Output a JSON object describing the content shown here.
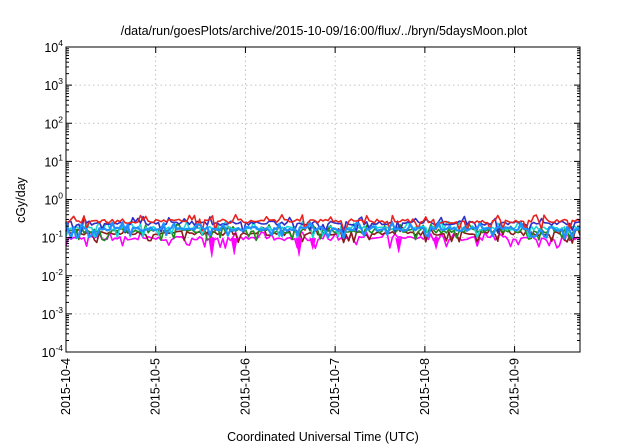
{
  "chart_data": {
    "type": "line",
    "title": "/data/run/goesPlots/archive/2015-10-09/16:00/flux/../bryn/5daysMoon.plot",
    "xlabel": "Coordinated Universal Time (UTC)",
    "ylabel": "cGy/day",
    "yscale": "log",
    "ylim": [
      0.0001,
      10000
    ],
    "y_ticks": [
      {
        "base": "10",
        "exp": "-4",
        "value": 0.0001
      },
      {
        "base": "10",
        "exp": "-3",
        "value": 0.001
      },
      {
        "base": "10",
        "exp": "-2",
        "value": 0.01
      },
      {
        "base": "10",
        "exp": "-1",
        "value": 0.1
      },
      {
        "base": "10",
        "exp": "0",
        "value": 1
      },
      {
        "base": "10",
        "exp": "1",
        "value": 10
      },
      {
        "base": "10",
        "exp": "2",
        "value": 100
      },
      {
        "base": "10",
        "exp": "3",
        "value": 1000
      },
      {
        "base": "10",
        "exp": "4",
        "value": 10000
      }
    ],
    "xlim": [
      "2015-10-04 00:00",
      "2015-10-09 17:30"
    ],
    "x_tick_labels": [
      "2015-10-4",
      "2015-10-5",
      "2015-10-6",
      "2015-10-7",
      "2015-10-8",
      "2015-10-9"
    ],
    "grid": true,
    "series": [
      {
        "color": "#e8231e",
        "level": 0.27,
        "x": [
          "2015-10-04 00:00",
          "2015-10-05 00:00",
          "2015-10-06 00:00",
          "2015-10-07 00:00",
          "2015-10-08 00:00",
          "2015-10-09 00:00",
          "2015-10-09 17:30"
        ],
        "values": [
          0.27,
          0.27,
          0.26,
          0.27,
          0.27,
          0.26,
          0.27
        ]
      },
      {
        "color": "#2e2ec8",
        "level": 0.24,
        "x": [
          "2015-10-04 00:00",
          "2015-10-05 00:00",
          "2015-10-06 00:00",
          "2015-10-07 00:00",
          "2015-10-08 00:00",
          "2015-10-09 00:00",
          "2015-10-09 17:30"
        ],
        "values": [
          0.24,
          0.24,
          0.23,
          0.24,
          0.24,
          0.23,
          0.24
        ]
      },
      {
        "color": "#16d5d5",
        "level": 0.18,
        "x": [
          "2015-10-04 00:00",
          "2015-10-05 00:00",
          "2015-10-06 00:00",
          "2015-10-07 00:00",
          "2015-10-08 00:00",
          "2015-10-09 00:00",
          "2015-10-09 17:30"
        ],
        "values": [
          0.18,
          0.18,
          0.17,
          0.18,
          0.18,
          0.17,
          0.18
        ]
      },
      {
        "color": "#1e8a1e",
        "level": 0.15,
        "x": [
          "2015-10-04 00:00",
          "2015-10-05 00:00",
          "2015-10-06 00:00",
          "2015-10-07 00:00",
          "2015-10-08 00:00",
          "2015-10-09 00:00",
          "2015-10-09 17:30"
        ],
        "values": [
          0.15,
          0.15,
          0.14,
          0.15,
          0.15,
          0.14,
          0.15
        ]
      },
      {
        "color": "#8b1a1a",
        "level": 0.13,
        "x": [
          "2015-10-04 00:00",
          "2015-10-05 00:00",
          "2015-10-06 00:00",
          "2015-10-07 00:00",
          "2015-10-08 00:00",
          "2015-10-09 00:00",
          "2015-10-09 17:30"
        ],
        "values": [
          0.13,
          0.13,
          0.12,
          0.13,
          0.13,
          0.12,
          0.13
        ]
      },
      {
        "color": "#ff00ff",
        "level": 0.095,
        "x": [
          "2015-10-04 00:00",
          "2015-10-05 00:00",
          "2015-10-06 00:00",
          "2015-10-07 00:00",
          "2015-10-08 00:00",
          "2015-10-09 00:00",
          "2015-10-09 17:30"
        ],
        "values": [
          0.095,
          0.095,
          0.09,
          0.095,
          0.095,
          0.09,
          0.095
        ]
      },
      {
        "color": "#1e90ff",
        "level": 0.17,
        "x": [
          "2015-10-04 00:00",
          "2015-10-05 00:00",
          "2015-10-06 00:00",
          "2015-10-07 00:00",
          "2015-10-08 00:00",
          "2015-10-09 00:00",
          "2015-10-09 17:30"
        ],
        "values": [
          0.17,
          0.17,
          0.16,
          0.17,
          0.17,
          0.16,
          0.17
        ]
      }
    ],
    "dips": [
      {
        "x": "2015-10-05 15:00",
        "y": 0.03
      },
      {
        "x": "2015-10-05 21:00",
        "y": 0.035
      },
      {
        "x": "2015-10-06 14:20",
        "y": 0.032
      },
      {
        "x": "2015-10-06 18:00",
        "y": 0.05
      },
      {
        "x": "2015-10-07 17:00",
        "y": 0.04
      },
      {
        "x": "2015-10-08 03:00",
        "y": 0.05
      }
    ]
  }
}
